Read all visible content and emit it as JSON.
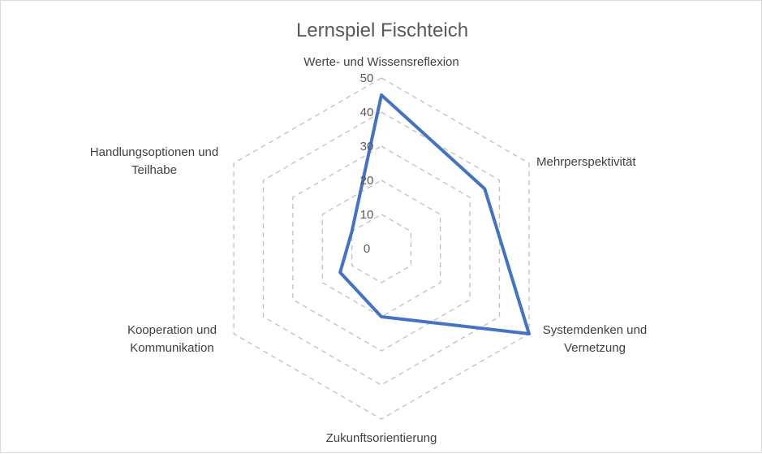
{
  "chart_data": {
    "type": "radar",
    "title": "Lernspiel Fischteich",
    "categories": [
      [
        "Werte- und Wissensreflexion"
      ],
      [
        "Mehrperspektivität"
      ],
      [
        "Systemdenken und",
        "Vernetzung"
      ],
      [
        "Zukunftsorientierung"
      ],
      [
        "Kooperation und",
        "Kommunikation"
      ],
      [
        "Handlungsoptionen und",
        "Teilhabe"
      ]
    ],
    "series": [
      {
        "values": [
          45,
          35,
          50,
          20,
          14,
          10
        ]
      }
    ],
    "rlim": [
      0,
      50
    ],
    "ticks": [
      "0",
      "10",
      "20",
      "30",
      "40",
      "50"
    ],
    "grid": "dashed",
    "legend": "none",
    "colors": {
      "series": "#4472c4",
      "grid": "#bfbfbf",
      "text": "#404040",
      "title": "#595959"
    }
  }
}
